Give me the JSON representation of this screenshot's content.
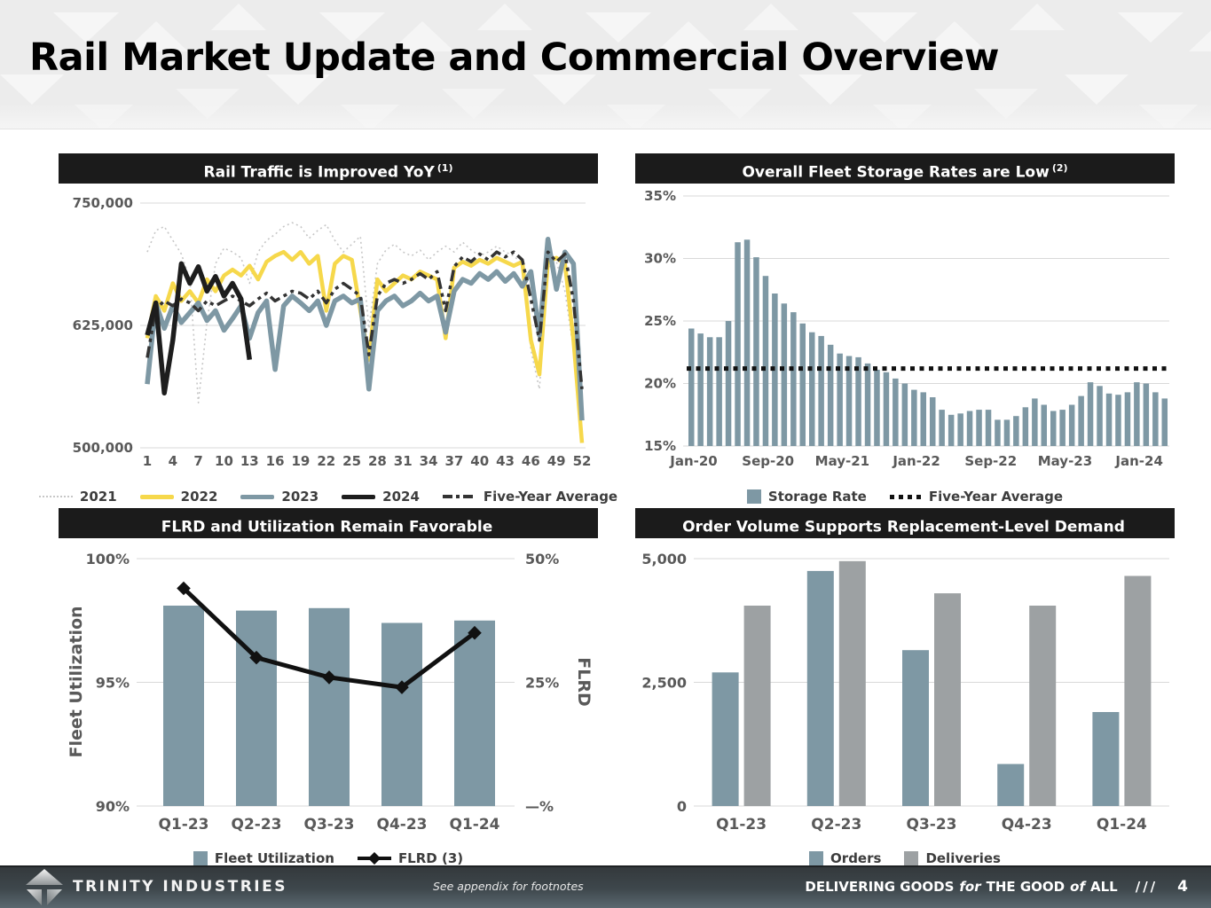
{
  "slide": {
    "title": "Rail Market Update and Commercial Overview",
    "page_number": "4",
    "footer": {
      "company": "TRINITY INDUSTRIES",
      "note": "See appendix for footnotes",
      "tagline": {
        "p1": "DELIVERING GOODS",
        "p2": "for",
        "p3": "THE GOOD",
        "p4": "of",
        "p5": "ALL"
      },
      "slashes": "///"
    }
  },
  "colors": {
    "slate": "#7E98A4",
    "yellow": "#F6D84B",
    "gray": "#9DA1A3",
    "light_dotted": "#c7c7c7",
    "ink": "#1d1d1d",
    "grid": "#d9d9d9",
    "axis_text": "#595959",
    "panel_header_bg": "#1b1b1b"
  },
  "chart_data": [
    {
      "id": "rail-traffic",
      "type": "line",
      "title": "Rail Traffic is Improved YoY",
      "footnote_ref": "(1)",
      "ylabel": "",
      "ylim": [
        500000,
        750000
      ],
      "y_ticks": [
        {
          "label": "750,000",
          "value": 750000
        },
        {
          "label": "625,000",
          "value": 625000
        },
        {
          "label": "500,000",
          "value": 500000
        }
      ],
      "x_ticks": [
        1,
        4,
        7,
        10,
        13,
        16,
        19,
        22,
        25,
        28,
        31,
        34,
        37,
        40,
        43,
        46,
        49,
        52
      ],
      "x_unit": "week",
      "series": [
        {
          "name": "2021",
          "style": "dotted",
          "color": "#c7c7c7",
          "width": 1.6,
          "z": 0,
          "values": [
            700000,
            722000,
            726000,
            712000,
            698000,
            672000,
            546000,
            628000,
            688000,
            704000,
            700000,
            694000,
            668000,
            700000,
            712000,
            718000,
            726000,
            730000,
            726000,
            714000,
            722000,
            728000,
            712000,
            700000,
            708000,
            716000,
            622000,
            688000,
            702000,
            708000,
            700000,
            696000,
            702000,
            692000,
            700000,
            706000,
            700000,
            710000,
            702000,
            696000,
            700000,
            706000,
            700000,
            696000,
            688000,
            600000,
            560000,
            684000,
            690000,
            660000,
            600000,
            545000
          ]
        },
        {
          "name": "2022",
          "style": "solid",
          "color": "#F6D84B",
          "width": 4.5,
          "z": 1,
          "values": [
            612000,
            655000,
            640000,
            668000,
            650000,
            660000,
            648000,
            672000,
            660000,
            676000,
            682000,
            676000,
            686000,
            672000,
            690000,
            696000,
            700000,
            692000,
            700000,
            688000,
            696000,
            640000,
            688000,
            696000,
            692000,
            640000,
            590000,
            672000,
            660000,
            668000,
            676000,
            672000,
            680000,
            676000,
            672000,
            612000,
            684000,
            690000,
            686000,
            692000,
            688000,
            694000,
            690000,
            686000,
            690000,
            610000,
            575000,
            690000,
            694000,
            688000,
            610000,
            505000
          ]
        },
        {
          "name": "2023",
          "style": "solid",
          "color": "#7E98A4",
          "width": 5.5,
          "z": 2,
          "values": [
            565000,
            648000,
            622000,
            645000,
            628000,
            638000,
            648000,
            630000,
            640000,
            620000,
            632000,
            645000,
            612000,
            638000,
            650000,
            580000,
            645000,
            655000,
            648000,
            640000,
            650000,
            625000,
            650000,
            655000,
            648000,
            652000,
            560000,
            640000,
            650000,
            655000,
            645000,
            650000,
            658000,
            650000,
            655000,
            618000,
            660000,
            672000,
            668000,
            678000,
            672000,
            680000,
            670000,
            678000,
            665000,
            680000,
            615000,
            713000,
            662000,
            700000,
            688000,
            528000
          ]
        },
        {
          "name": "2024",
          "style": "solid",
          "color": "#1d1d1d",
          "width": 5.5,
          "z": 4,
          "values": [
            615000,
            648000,
            556000,
            610000,
            688000,
            668000,
            685000,
            660000,
            675000,
            655000,
            668000,
            652000,
            590000
          ]
        },
        {
          "name": "Five-Year Average",
          "style": "dashdot",
          "color": "#333333",
          "width": 3.5,
          "z": 3,
          "values": [
            592000,
            642000,
            650000,
            645000,
            652000,
            648000,
            640000,
            650000,
            645000,
            650000,
            655000,
            650000,
            645000,
            652000,
            658000,
            650000,
            655000,
            660000,
            658000,
            652000,
            660000,
            648000,
            662000,
            668000,
            662000,
            655000,
            595000,
            655000,
            668000,
            672000,
            668000,
            672000,
            678000,
            672000,
            680000,
            640000,
            685000,
            695000,
            690000,
            698000,
            692000,
            700000,
            695000,
            700000,
            692000,
            652000,
            610000,
            700000,
            690000,
            698000,
            650000,
            560000
          ]
        }
      ],
      "legend": [
        {
          "label": "2021",
          "swatch": "line-dotted",
          "color": "#c7c7c7"
        },
        {
          "label": "2022",
          "swatch": "line-solid",
          "color": "#F6D84B"
        },
        {
          "label": "2023",
          "swatch": "line-solid",
          "color": "#7E98A4"
        },
        {
          "label": "2024",
          "swatch": "line-solid",
          "color": "#1d1d1d"
        },
        {
          "label": "Five-Year Average",
          "swatch": "line-dashdot",
          "color": "#333333"
        }
      ]
    },
    {
      "id": "storage-rates",
      "type": "bar",
      "title": "Overall Fleet Storage Rates are Low",
      "footnote_ref": "(2)",
      "ylim": [
        15,
        35
      ],
      "y_ticks": [
        {
          "label": "35%",
          "value": 35
        },
        {
          "label": "30%",
          "value": 30
        },
        {
          "label": "25%",
          "value": 25
        },
        {
          "label": "20%",
          "value": 20
        },
        {
          "label": "15%",
          "value": 15
        }
      ],
      "bar_color": "#7E98A4",
      "five_year_average": 21.2,
      "x_tick_labels": [
        "Jan-20",
        "Sep-20",
        "May-21",
        "Jan-22",
        "Sep-22",
        "May-23",
        "Jan-24"
      ],
      "x_tick_positions": [
        0,
        8,
        16,
        24,
        32,
        40,
        48
      ],
      "values": [
        24.4,
        24.0,
        23.7,
        23.7,
        25.0,
        31.3,
        31.5,
        30.1,
        28.6,
        27.2,
        26.4,
        25.7,
        24.8,
        24.1,
        23.8,
        23.1,
        22.4,
        22.2,
        22.1,
        21.6,
        21.1,
        20.9,
        20.4,
        20.0,
        19.5,
        19.3,
        18.9,
        17.9,
        17.5,
        17.6,
        17.8,
        17.9,
        17.9,
        17.1,
        17.1,
        17.4,
        18.1,
        18.8,
        18.3,
        17.8,
        17.9,
        18.3,
        19.0,
        20.1,
        19.8,
        19.2,
        19.1,
        19.3,
        20.1,
        20.0,
        19.3,
        18.8
      ],
      "legend": [
        {
          "label": "Storage Rate",
          "swatch": "square",
          "color": "#7E98A4"
        },
        {
          "label": "Five-Year Average",
          "swatch": "line-dotted-bold",
          "color": "#111111"
        }
      ]
    },
    {
      "id": "flrd-utilization",
      "type": "combo",
      "title": "FLRD and Utilization Remain Favorable",
      "footnote_ref": "",
      "categories": [
        "Q1-23",
        "Q2-23",
        "Q3-23",
        "Q4-23",
        "Q1-24"
      ],
      "bar_series": {
        "name": "Fleet Utilization",
        "color": "#7E98A4",
        "values": [
          98.1,
          97.9,
          98.0,
          97.4,
          97.5
        ]
      },
      "line_series": {
        "name": "FLRD (3)",
        "color": "#111111",
        "values": [
          44,
          30,
          26,
          24,
          35
        ]
      },
      "left_axis": {
        "label": "Fleet Utilization",
        "lim": [
          90,
          100
        ],
        "ticks": [
          {
            "label": "100%",
            "value": 100
          },
          {
            "label": "95%",
            "value": 95
          },
          {
            "label": "90%",
            "value": 90
          }
        ]
      },
      "right_axis": {
        "label": "FLRD",
        "lim": [
          0,
          50
        ],
        "ticks": [
          {
            "label": "50%",
            "value": 50
          },
          {
            "label": "25%",
            "value": 25
          },
          {
            "label": "—%",
            "value": 0
          }
        ]
      },
      "legend": [
        {
          "label": "Fleet Utilization",
          "swatch": "square",
          "color": "#7E98A4"
        },
        {
          "label": "FLRD (3)",
          "swatch": "line-diamond",
          "color": "#111111"
        }
      ]
    },
    {
      "id": "orders-deliveries",
      "type": "grouped-bar",
      "title": "Order Volume Supports Replacement-Level Demand",
      "footnote_ref": "",
      "categories": [
        "Q1-23",
        "Q2-23",
        "Q3-23",
        "Q4-23",
        "Q1-24"
      ],
      "ylim": [
        0,
        5000
      ],
      "y_ticks": [
        {
          "label": "5,000",
          "value": 5000
        },
        {
          "label": "2,500",
          "value": 2500
        },
        {
          "label": "0",
          "value": 0
        }
      ],
      "series": [
        {
          "name": "Orders",
          "color": "#7E98A4",
          "values": [
            2700,
            4750,
            3150,
            850,
            1900
          ]
        },
        {
          "name": "Deliveries",
          "color": "#9DA1A3",
          "values": [
            4050,
            4950,
            4300,
            4050,
            4650
          ]
        }
      ],
      "legend": [
        {
          "label": "Orders",
          "swatch": "square",
          "color": "#7E98A4"
        },
        {
          "label": "Deliveries",
          "swatch": "square",
          "color": "#9DA1A3"
        }
      ]
    }
  ]
}
